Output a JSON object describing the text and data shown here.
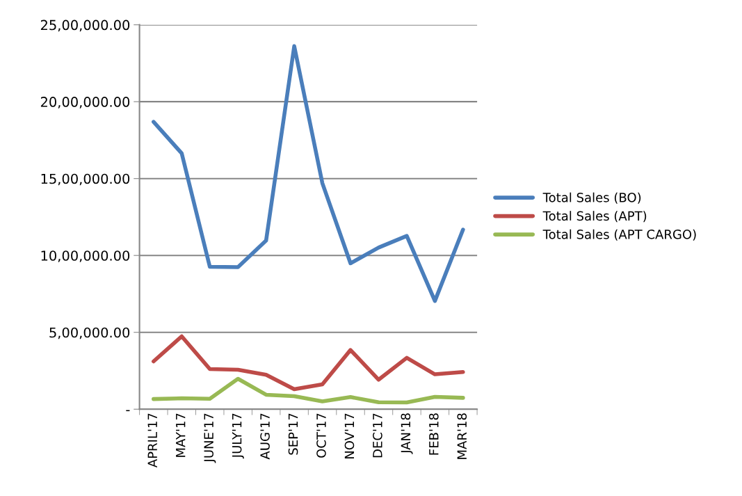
{
  "chart_data": {
    "type": "line",
    "categories": [
      "APRIL'17",
      "MAY'17",
      "JUNE'17",
      "JULY'17",
      "AUG'17",
      "SEP'17",
      "OCT'17",
      "NOV'17",
      "DEC'17",
      "JAN'18",
      "FEB'18",
      "MAR'18"
    ],
    "series": [
      {
        "name": "Total Sales (BO)",
        "color": "#4a7ebb",
        "values": [
          1869000,
          1664000,
          926000,
          924000,
          1097000,
          2361000,
          1470000,
          949000,
          1051000,
          1127000,
          704000,
          1168000
        ]
      },
      {
        "name": "Total Sales (APT)",
        "color": "#be4b48",
        "values": [
          311000,
          474000,
          261000,
          257000,
          224000,
          130000,
          162000,
          385000,
          192000,
          334000,
          227000,
          242000
        ]
      },
      {
        "name": "Total Sales (APT CARGO)",
        "color": "#98b954",
        "values": [
          66000,
          71000,
          68000,
          198000,
          94000,
          85000,
          51000,
          79000,
          45000,
          44000,
          80000,
          74000
        ]
      }
    ],
    "ylim": [
      0,
      2500000
    ],
    "yticks": [
      {
        "value": 0,
        "label": "-"
      },
      {
        "value": 500000,
        "label": "5,00,000.00"
      },
      {
        "value": 1000000,
        "label": "10,00,000.00"
      },
      {
        "value": 1500000,
        "label": "15,00,000.00"
      },
      {
        "value": 2000000,
        "label": "20,00,000.00"
      },
      {
        "value": 2500000,
        "label": "25,00,000.00"
      }
    ],
    "grid": "y",
    "legend": "right",
    "marker": "none",
    "line_style": "solid"
  }
}
